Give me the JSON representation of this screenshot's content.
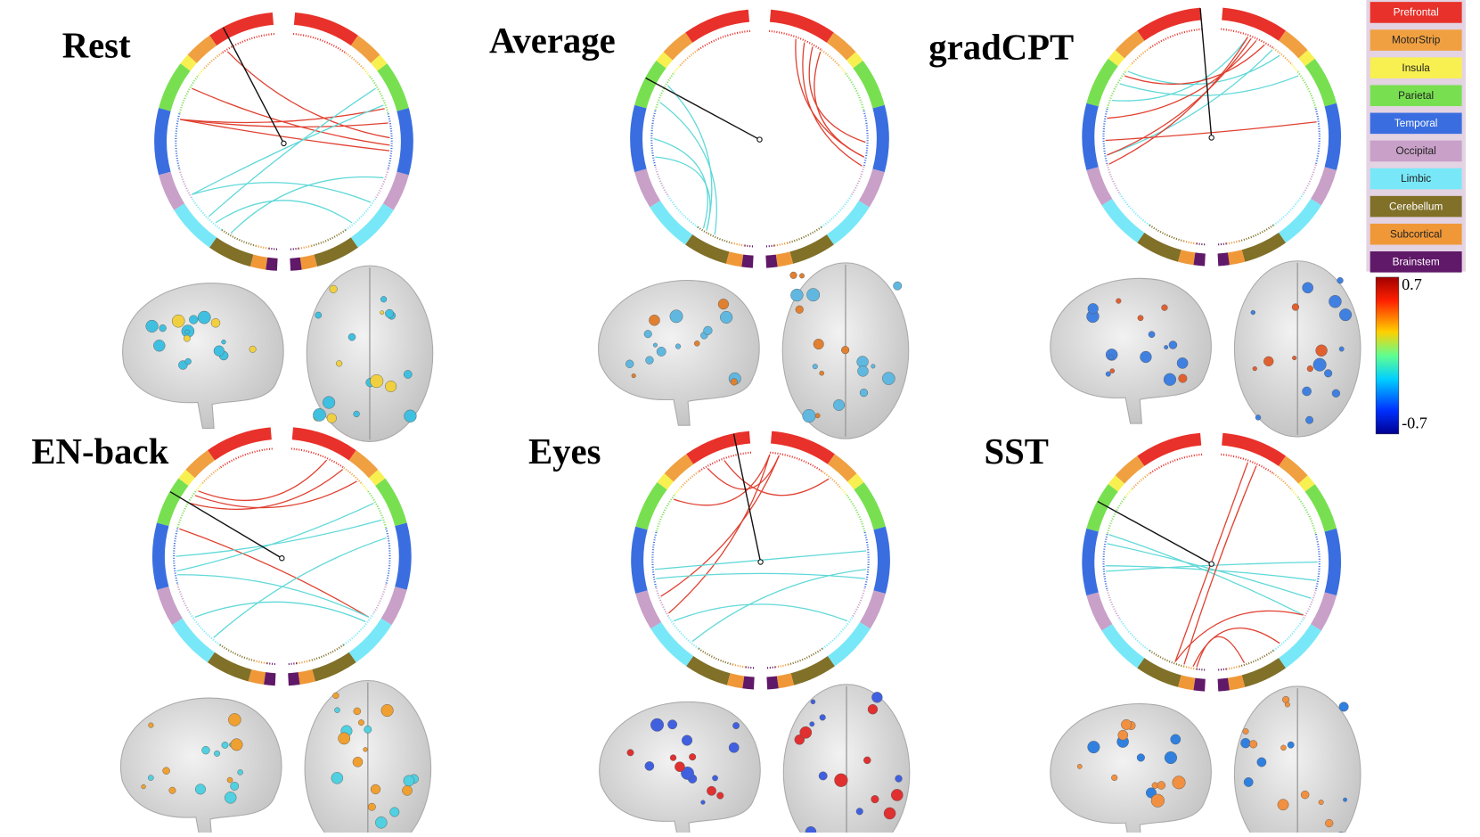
{
  "panels": [
    {
      "title": "Rest"
    },
    {
      "title": "Average"
    },
    {
      "title": "gradCPT"
    },
    {
      "title": "EN-back"
    },
    {
      "title": "Eyes"
    },
    {
      "title": "SST"
    }
  ],
  "legend": [
    {
      "label": "Prefrontal",
      "color": "#e8312a"
    },
    {
      "label": "MotorStrip",
      "color": "#f0a040"
    },
    {
      "label": "Insula",
      "color": "#f8f050"
    },
    {
      "label": "Parietal",
      "color": "#78e050"
    },
    {
      "label": "Temporal",
      "color": "#3a6ee0"
    },
    {
      "label": "Occipital",
      "color": "#c8a0c8"
    },
    {
      "label": "Limbic",
      "color": "#78e8f8"
    },
    {
      "label": "Cerebellum",
      "color": "#807028"
    },
    {
      "label": "Subcortical",
      "color": "#f09838"
    },
    {
      "label": "Brainstem",
      "color": "#601868"
    }
  ],
  "colorbar": {
    "max_label": "0.7",
    "min_label": "-0.7"
  }
}
